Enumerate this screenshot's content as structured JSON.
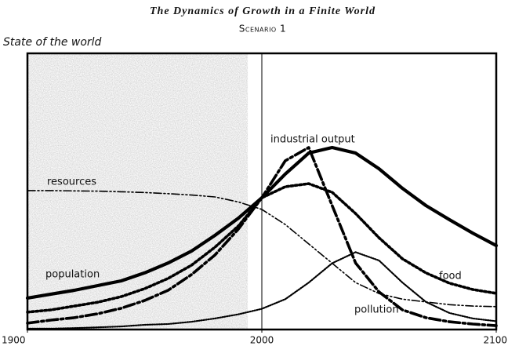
{
  "chart_data": {
    "type": "line",
    "title": "The Dynamics of Growth in a Finite World",
    "subtitle": "Scenario 1",
    "y_label": "State of the world",
    "x": [
      1900,
      1910,
      1920,
      1930,
      1940,
      1950,
      1960,
      1970,
      1980,
      1990,
      2000,
      2010,
      2020,
      2030,
      2040,
      2050,
      2060,
      2070,
      2080,
      2090,
      2100
    ],
    "xlim": [
      1900,
      2100
    ],
    "xticks": [
      1900,
      2000,
      2100
    ],
    "ylim": [
      0,
      100
    ],
    "shaded_span": [
      1900,
      1994
    ],
    "reference_line": 2000,
    "series": [
      {
        "name": "population",
        "color": "#000000",
        "style": "solid",
        "values": [
          11.4,
          12.8,
          14.2,
          15.9,
          17.6,
          20.5,
          24.1,
          28.4,
          34.1,
          40.3,
          47.7,
          56.3,
          63.9,
          65.9,
          63.9,
          58.2,
          51.1,
          44.9,
          39.8,
          34.9,
          30.4
        ]
      },
      {
        "name": "industrial output",
        "color": "#000000",
        "style": "dashdot",
        "values": [
          2.3,
          3.4,
          4.3,
          5.7,
          7.7,
          10.5,
          14.2,
          19.9,
          27.0,
          36.4,
          47.7,
          61.1,
          65.9,
          44.9,
          24.1,
          13.6,
          7.1,
          4.3,
          2.8,
          2.0,
          1.4
        ]
      },
      {
        "name": "food",
        "color": "#000000",
        "style": "dotted",
        "values": [
          6.3,
          7.1,
          8.5,
          9.9,
          11.9,
          14.8,
          18.5,
          23.3,
          29.8,
          37.5,
          47.7,
          51.7,
          52.8,
          49.7,
          42.0,
          33.2,
          25.6,
          20.5,
          16.8,
          14.5,
          13.1
        ]
      },
      {
        "name": "resources",
        "color": "#000000",
        "style": "dashdotdot",
        "values": [
          50.3,
          50.3,
          50.2,
          50.1,
          49.9,
          49.6,
          49.2,
          48.7,
          48.0,
          46.2,
          43.5,
          38.0,
          31.0,
          24.0,
          17.0,
          13.0,
          11.0,
          10.0,
          9.0,
          8.5,
          8.3
        ]
      },
      {
        "name": "pollution",
        "color": "#000000",
        "style": "fine-dotted",
        "values": [
          0.3,
          0.3,
          0.5,
          0.8,
          1.1,
          1.7,
          2.0,
          2.8,
          4.0,
          5.5,
          7.5,
          11.0,
          17.0,
          24.0,
          28.0,
          25.0,
          17.0,
          10.0,
          6.0,
          4.0,
          3.0
        ]
      }
    ]
  }
}
